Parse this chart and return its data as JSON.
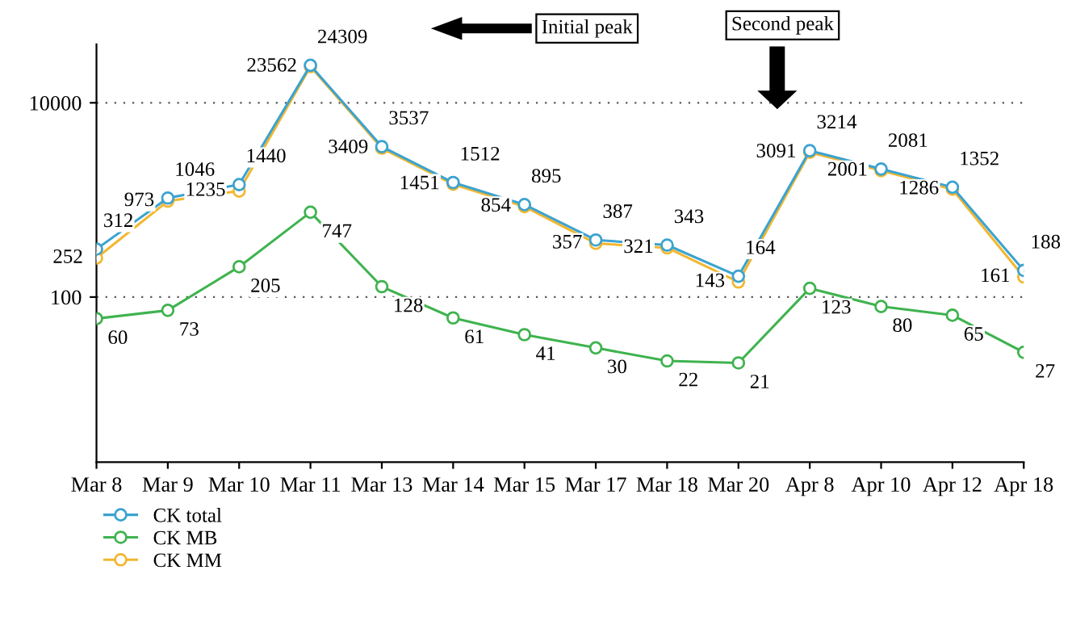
{
  "chart_data": {
    "type": "line",
    "categories": [
      "Mar 8",
      "Mar 9",
      "Mar 10",
      "Mar 11",
      "Mar 13",
      "Mar 14",
      "Mar 15",
      "Mar 17",
      "Mar 18",
      "Mar 20",
      "Apr 8",
      "Apr 10",
      "Apr 12",
      "Apr 18"
    ],
    "series": [
      {
        "name": "CK total",
        "color": "#3ba3d0",
        "values": [
          312,
          1046,
          1440,
          24309,
          3537,
          1512,
          895,
          387,
          343,
          164,
          3214,
          2081,
          1352,
          188
        ]
      },
      {
        "name": "CK MB",
        "color": "#3fb34f",
        "values": [
          60,
          73,
          205,
          747,
          128,
          61,
          41,
          30,
          22,
          21,
          123,
          80,
          65,
          27
        ]
      },
      {
        "name": "CK MM",
        "color": "#f2b730",
        "values": [
          252,
          973,
          1235,
          23562,
          3409,
          1451,
          854,
          357,
          321,
          143,
          3091,
          2001,
          1286,
          161
        ]
      }
    ],
    "log": "y",
    "ylim": [
      2,
      40000
    ],
    "yticks": [
      100,
      10000
    ],
    "grid": "y",
    "marker": "circle",
    "line_style": "solid",
    "data_labels": true,
    "legend": "bottom left",
    "annotations": [
      "Initial peak",
      "Second peak"
    ]
  }
}
